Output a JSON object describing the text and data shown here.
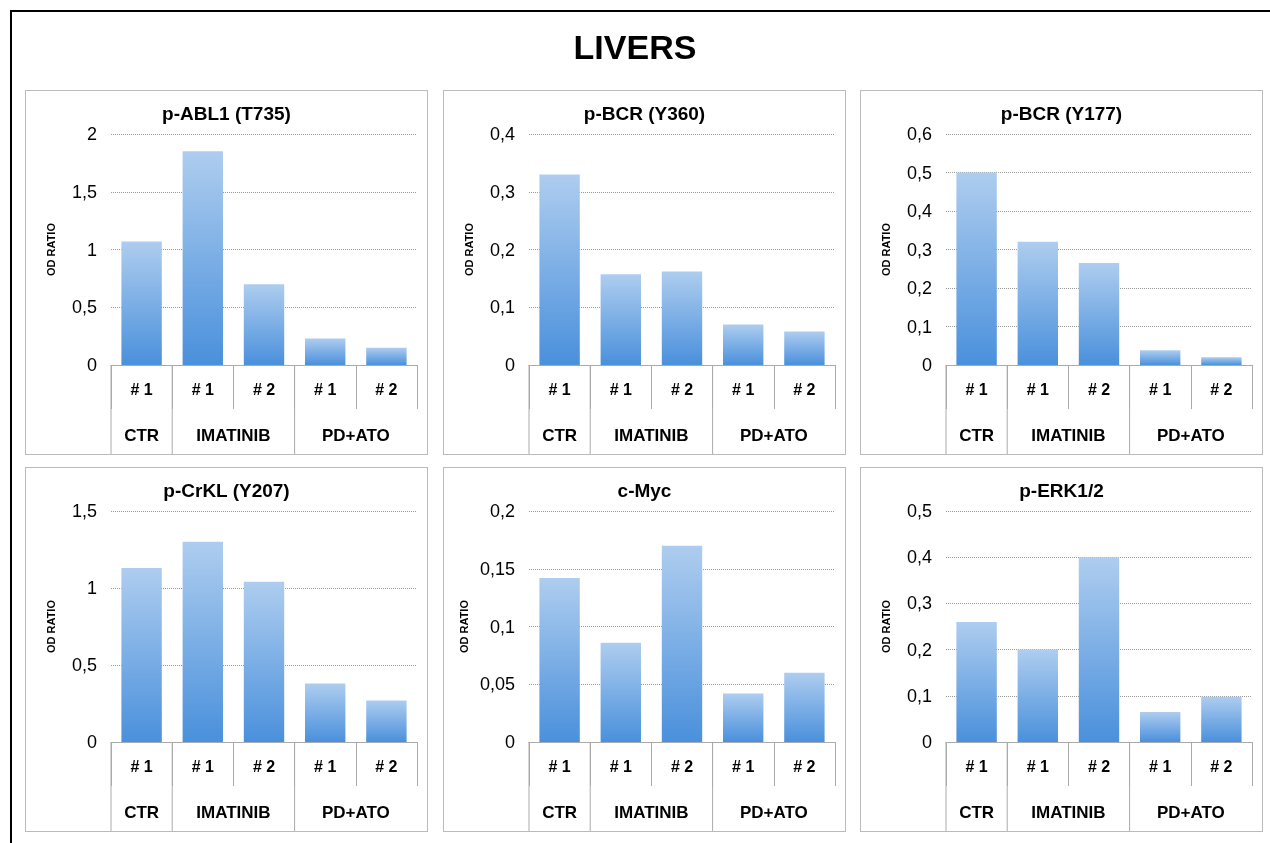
{
  "chart_data": [
    {
      "type": "bar",
      "title": "p-ABL1 (T735)",
      "ylabel": "OD RATIO",
      "categories": [
        "# 1",
        "# 1",
        "# 2",
        "# 1",
        "# 2"
      ],
      "annotations": [
        "LIVERS",
        "CTR",
        "IMATINIB",
        "PD+ATO"
      ],
      "values": [
        1.07,
        1.85,
        0.7,
        0.23,
        0.15
      ],
      "color": "#4a90dc",
      "ylim": [
        0,
        2
      ],
      "yticks": [
        0,
        {
          "value": 0.5,
          "label": "0,5"
        },
        1,
        {
          "value": 1.5,
          "label": "1,5"
        },
        2
      ],
      "grid": "y"
    },
    {
      "type": "bar",
      "title": "p-BCR (Y360)",
      "ylabel": "OD RATIO",
      "categories": [
        "# 1",
        "# 1",
        "# 2",
        "# 1",
        "# 2"
      ],
      "annotations": [
        "CTR",
        "IMATINIB",
        "PD+ATO"
      ],
      "values": [
        0.33,
        0.157,
        0.162,
        0.07,
        0.058
      ],
      "color": "#4a90dc",
      "ylim": [
        0,
        0.4
      ],
      "yticks": [
        0,
        {
          "value": 0.1,
          "label": "0,1"
        },
        {
          "value": 0.2,
          "label": "0,2"
        },
        {
          "value": 0.3,
          "label": "0,3"
        },
        {
          "value": 0.4,
          "label": "0,4"
        }
      ],
      "grid": "y"
    },
    {
      "type": "bar",
      "title": "p-BCR (Y177)",
      "ylabel": "OD RATIO",
      "categories": [
        "# 1",
        "# 1",
        "# 2",
        "# 1",
        "# 2"
      ],
      "annotations": [
        "CTR",
        "IMATINIB",
        "PD+ATO"
      ],
      "values": [
        0.5,
        0.32,
        0.265,
        0.038,
        0.02
      ],
      "color": "#4a90dc",
      "ylim": [
        0,
        0.6
      ],
      "yticks": [
        0,
        {
          "value": 0.1,
          "label": "0,1"
        },
        {
          "value": 0.2,
          "label": "0,2"
        },
        {
          "value": 0.3,
          "label": "0,3"
        },
        {
          "value": 0.4,
          "label": "0,4"
        },
        {
          "value": 0.5,
          "label": "0,5"
        },
        {
          "value": 0.6,
          "label": "0,6"
        }
      ],
      "grid": "y"
    },
    {
      "type": "bar",
      "title": "p-CrKL (Y207)",
      "ylabel": "OD RATIO",
      "categories": [
        "# 1",
        "# 1",
        "# 2",
        "# 1",
        "# 2"
      ],
      "annotations": [
        "CTR",
        "IMATINIB",
        "PD+ATO"
      ],
      "values": [
        1.13,
        1.3,
        1.04,
        0.38,
        0.27
      ],
      "color": "#4a90dc",
      "ylim": [
        0,
        1.5
      ],
      "yticks": [
        0,
        {
          "value": 0.5,
          "label": "0,5"
        },
        1,
        {
          "value": 1.5,
          "label": "1,5"
        }
      ],
      "grid": "y"
    },
    {
      "type": "bar",
      "title": "c-Myc",
      "ylabel": "OD RATIO",
      "categories": [
        "# 1",
        "# 1",
        "# 2",
        "# 1",
        "# 2"
      ],
      "annotations": [
        "CTR",
        "IMATINIB",
        "PD+ATO"
      ],
      "values": [
        0.142,
        0.086,
        0.17,
        0.042,
        0.06
      ],
      "color": "#4a90dc",
      "ylim": [
        0,
        0.2
      ],
      "yticks": [
        0,
        {
          "value": 0.05,
          "label": "0,05"
        },
        {
          "value": 0.1,
          "label": "0,1"
        },
        {
          "value": 0.15,
          "label": "0,15"
        },
        {
          "value": 0.2,
          "label": "0,2"
        }
      ],
      "grid": "y"
    },
    {
      "type": "bar",
      "title": "p-ERK1/2",
      "ylabel": "OD RATIO",
      "categories": [
        "# 1",
        "# 1",
        "# 2",
        "# 1",
        "# 2"
      ],
      "annotations": [
        "CTR",
        "IMATINIB",
        "PD+ATO"
      ],
      "values": [
        0.26,
        0.2,
        0.4,
        0.065,
        0.098
      ],
      "color": "#4a90dc",
      "ylim": [
        0,
        0.5
      ],
      "yticks": [
        0,
        {
          "value": 0.1,
          "label": "0,1"
        },
        {
          "value": 0.2,
          "label": "0,2"
        },
        {
          "value": 0.3,
          "label": "0,3"
        },
        {
          "value": 0.4,
          "label": "0,4"
        },
        {
          "value": 0.5,
          "label": "0,5"
        }
      ],
      "grid": "y"
    }
  ]
}
